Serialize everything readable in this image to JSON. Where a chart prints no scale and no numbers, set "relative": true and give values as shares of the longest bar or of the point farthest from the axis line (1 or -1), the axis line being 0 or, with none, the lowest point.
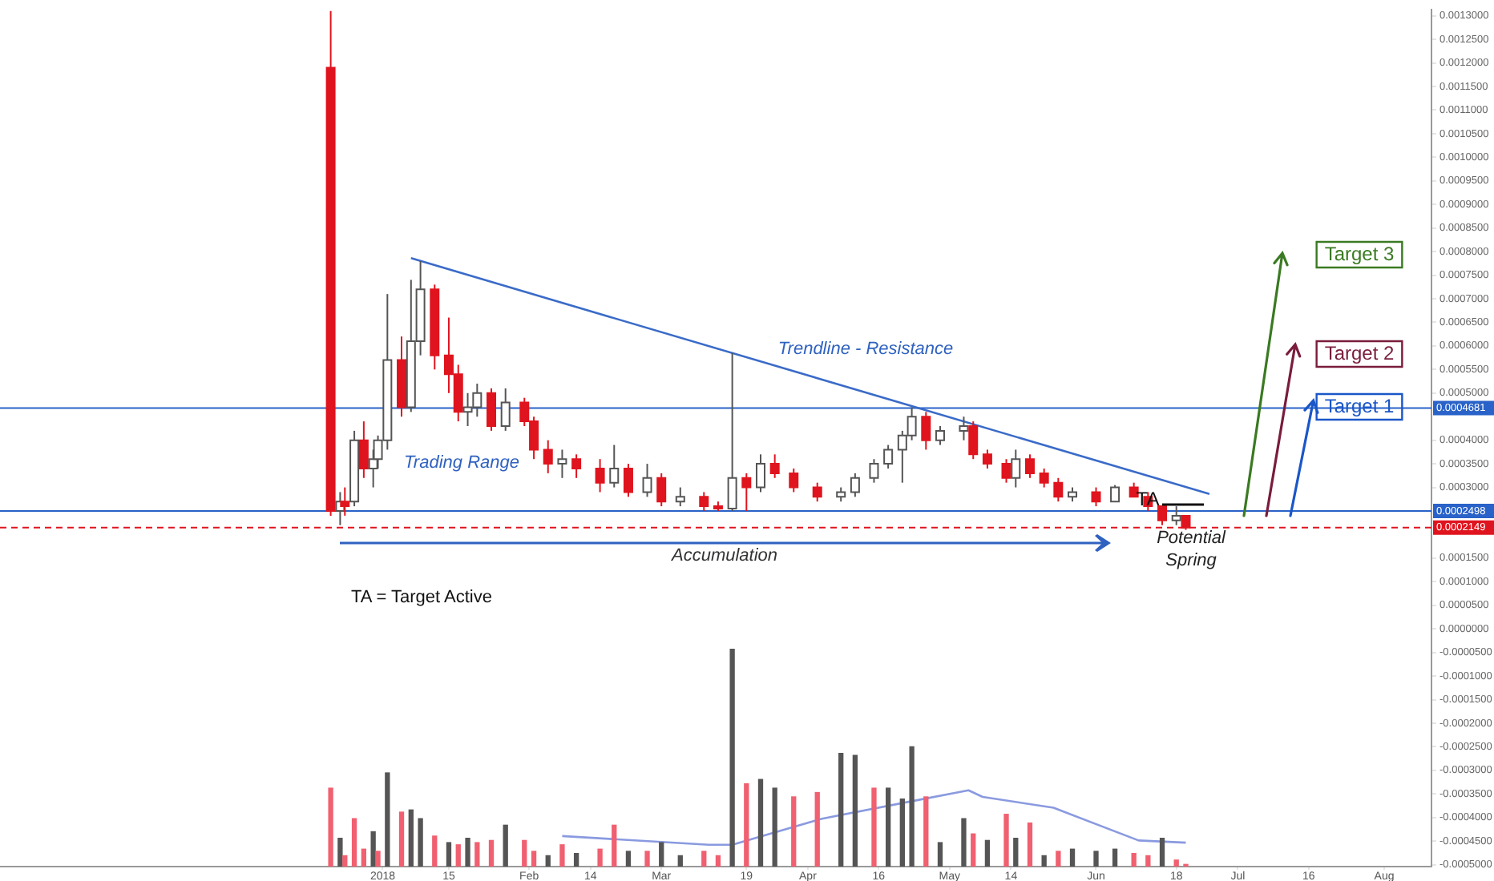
{
  "chart_data": [
    {
      "type": "candlestick",
      "x": [
        "2017-12-21",
        "2017-12-23",
        "2017-12-24",
        "2017-12-26",
        "2017-12-28",
        "2017-12-30",
        "2017-12-31",
        "2018-01-02",
        "2018-01-05",
        "2018-01-07",
        "2018-01-09",
        "2018-01-12",
        "2018-01-15",
        "2018-01-17",
        "2018-01-19",
        "2018-01-21",
        "2018-01-24",
        "2018-01-27",
        "2018-01-31",
        "2018-02-02",
        "2018-02-05",
        "2018-02-08",
        "2018-02-11",
        "2018-02-16",
        "2018-02-19",
        "2018-02-22",
        "2018-02-26",
        "2018-03-01",
        "2018-03-05",
        "2018-03-10",
        "2018-03-13",
        "2018-03-16",
        "2018-03-19",
        "2018-03-22",
        "2018-03-25",
        "2018-03-29",
        "2018-04-03",
        "2018-04-08",
        "2018-04-11",
        "2018-04-15",
        "2018-04-18",
        "2018-04-21",
        "2018-04-23",
        "2018-04-26",
        "2018-04-29",
        "2018-05-04",
        "2018-05-06",
        "2018-05-09",
        "2018-05-13",
        "2018-05-15",
        "2018-05-18",
        "2018-05-21",
        "2018-05-24",
        "2018-05-27",
        "2018-06-01",
        "2018-06-05",
        "2018-06-09",
        "2018-06-12",
        "2018-06-15",
        "2018-06-18",
        "2018-06-20"
      ],
      "ohlc": [
        [
          0.00119,
          0.00131,
          0.00024,
          0.00025
        ],
        [
          0.00025,
          0.00029,
          0.00022,
          0.00027
        ],
        [
          0.00027,
          0.0003,
          0.00024,
          0.00026
        ],
        [
          0.00027,
          0.00042,
          0.00026,
          0.0004
        ],
        [
          0.0004,
          0.00044,
          0.00032,
          0.00034
        ],
        [
          0.00034,
          0.00038,
          0.0003,
          0.00036
        ],
        [
          0.00036,
          0.00041,
          0.00034,
          0.0004
        ],
        [
          0.0004,
          0.00071,
          0.00038,
          0.00057
        ],
        [
          0.00057,
          0.00062,
          0.00045,
          0.00047
        ],
        [
          0.00047,
          0.00074,
          0.00046,
          0.00061
        ],
        [
          0.00061,
          0.00078,
          0.00058,
          0.00072
        ],
        [
          0.00072,
          0.00073,
          0.00055,
          0.00058
        ],
        [
          0.00058,
          0.00066,
          0.0005,
          0.00054
        ],
        [
          0.00054,
          0.00056,
          0.00044,
          0.00046
        ],
        [
          0.00046,
          0.0005,
          0.00043,
          0.00047
        ],
        [
          0.00047,
          0.00052,
          0.00045,
          0.0005
        ],
        [
          0.0005,
          0.00051,
          0.00042,
          0.00043
        ],
        [
          0.00043,
          0.00051,
          0.00042,
          0.00048
        ],
        [
          0.00048,
          0.00049,
          0.00043,
          0.00044
        ],
        [
          0.00044,
          0.00045,
          0.00036,
          0.00038
        ],
        [
          0.00038,
          0.0004,
          0.00033,
          0.00035
        ],
        [
          0.00035,
          0.00038,
          0.00032,
          0.00036
        ],
        [
          0.00036,
          0.00037,
          0.00032,
          0.00034
        ],
        [
          0.00034,
          0.00036,
          0.00029,
          0.00031
        ],
        [
          0.00031,
          0.00039,
          0.0003,
          0.00034
        ],
        [
          0.00034,
          0.00035,
          0.00028,
          0.00029
        ],
        [
          0.00029,
          0.00035,
          0.00028,
          0.00032
        ],
        [
          0.00032,
          0.00033,
          0.00026,
          0.00027
        ],
        [
          0.00027,
          0.0003,
          0.00026,
          0.00028
        ],
        [
          0.00028,
          0.00029,
          0.00025,
          0.00026
        ],
        [
          0.00026,
          0.00027,
          0.00025,
          0.000255
        ],
        [
          0.000255,
          0.000585,
          0.00025,
          0.00032
        ],
        [
          0.00032,
          0.00033,
          0.00025,
          0.0003
        ],
        [
          0.0003,
          0.00037,
          0.00029,
          0.00035
        ],
        [
          0.00035,
          0.00037,
          0.00032,
          0.00033
        ],
        [
          0.00033,
          0.00034,
          0.00029,
          0.0003
        ],
        [
          0.0003,
          0.00031,
          0.00027,
          0.00028
        ],
        [
          0.00028,
          0.0003,
          0.00027,
          0.00029
        ],
        [
          0.00029,
          0.00033,
          0.00028,
          0.00032
        ],
        [
          0.00032,
          0.00036,
          0.00031,
          0.00035
        ],
        [
          0.00035,
          0.00039,
          0.00034,
          0.00038
        ],
        [
          0.00038,
          0.00042,
          0.00031,
          0.00041
        ],
        [
          0.00041,
          0.00047,
          0.0004,
          0.00045
        ],
        [
          0.00045,
          0.00046,
          0.00038,
          0.0004
        ],
        [
          0.0004,
          0.00043,
          0.00039,
          0.00042
        ],
        [
          0.00042,
          0.00045,
          0.0004,
          0.00043
        ],
        [
          0.00043,
          0.00044,
          0.00036,
          0.00037
        ],
        [
          0.00037,
          0.00038,
          0.00034,
          0.00035
        ],
        [
          0.00035,
          0.00036,
          0.00031,
          0.00032
        ],
        [
          0.00032,
          0.00038,
          0.0003,
          0.00036
        ],
        [
          0.00036,
          0.00037,
          0.00032,
          0.00033
        ],
        [
          0.00033,
          0.00034,
          0.0003,
          0.00031
        ],
        [
          0.00031,
          0.00032,
          0.00027,
          0.00028
        ],
        [
          0.00028,
          0.0003,
          0.00027,
          0.00029
        ],
        [
          0.00029,
          0.0003,
          0.00026,
          0.00027
        ],
        [
          0.00027,
          0.000305,
          0.00027,
          0.0003
        ],
        [
          0.0003,
          0.00031,
          0.00028,
          0.00028
        ],
        [
          0.00028,
          0.00029,
          0.00025,
          0.00026
        ],
        [
          0.00026,
          0.00026,
          0.00022,
          0.00023
        ],
        [
          0.00023,
          0.00026,
          0.00022,
          0.00024
        ],
        [
          0.00024,
          0.00024,
          0.00021,
          0.0002149
        ]
      ],
      "series": [
        {
          "type": "line",
          "x": [
            "2018-01-07",
            "2018-06-25"
          ],
          "values": [
            0.000786,
            0.000286
          ],
          "color": "#3a6bc8"
        }
      ],
      "xlim": [
        "2017-10-12",
        "2018-08-11"
      ],
      "tick_labels": "y",
      "ylim": [
        -0.000504,
        0.0013134
      ],
      "yticks": [
        {
          "value": 0.0013,
          "label": "0.0013000"
        },
        {
          "value": 0.00125,
          "label": "0.0012500"
        },
        {
          "value": 0.0012,
          "label": "0.0012000"
        },
        {
          "value": 0.00115,
          "label": "0.0011500"
        },
        {
          "value": 0.0011,
          "label": "0.0011000"
        },
        {
          "value": 0.00105,
          "label": "0.0010500"
        },
        {
          "value": 0.001,
          "label": "0.0010000"
        },
        {
          "value": 0.00095,
          "label": "0.0009500"
        },
        {
          "value": 0.0009,
          "label": "0.0009000"
        },
        {
          "value": 0.00085,
          "label": "0.0008500"
        },
        {
          "value": 0.0008,
          "label": "0.0008000"
        },
        {
          "value": 0.00075,
          "label": "0.0007500"
        },
        {
          "value": 0.0007,
          "label": "0.0007000"
        },
        {
          "value": 0.00065,
          "label": "0.0006500"
        },
        {
          "value": 0.0006,
          "label": "0.0006000"
        },
        {
          "value": 0.00055,
          "label": "0.0005500"
        },
        {
          "value": 0.0005,
          "label": "0.0005000"
        },
        {
          "value": 0.0004,
          "label": "0.0004000"
        },
        {
          "value": 0.00035,
          "label": "0.0003500"
        },
        {
          "value": 0.0003,
          "label": "0.0003000"
        },
        {
          "value": 0.00015,
          "label": "0.0001500"
        },
        {
          "value": 0.0001,
          "label": "0.0001000"
        },
        {
          "value": 5e-05,
          "label": "0.0000500"
        },
        {
          "value": 0,
          "label": "0.0000000"
        },
        {
          "value": -5e-05,
          "label": "-0.0000500"
        },
        {
          "value": -0.0001,
          "label": "-0.0001000"
        },
        {
          "value": -0.00015,
          "label": "-0.0001500"
        },
        {
          "value": -0.0002,
          "label": "-0.0002000"
        },
        {
          "value": -0.00025,
          "label": "-0.0002500"
        },
        {
          "value": -0.0003,
          "label": "-0.0003000"
        },
        {
          "value": -0.00035,
          "label": "-0.0003500"
        },
        {
          "value": -0.0004,
          "label": "-0.0004000"
        },
        {
          "value": -0.00045,
          "label": "-0.0004500"
        },
        {
          "value": -0.0005,
          "label": "-0.0005000"
        }
      ],
      "ref_lines": [
        {
          "axis": "y",
          "value": 0.0004681,
          "label": "0.0004681",
          "color": "#2962c8"
        },
        {
          "axis": "y",
          "value": 0.0002498,
          "label": "0.0002498",
          "color": "#2962c8"
        },
        {
          "axis": "y",
          "value": 0.0002149,
          "label": "0.0002149",
          "color": "#e0141e",
          "line_style": "dashed"
        }
      ],
      "annotations": [
        "Trendline - Resistance",
        "Trading Range",
        "Accumulation",
        "Potential\nSpring",
        "TA",
        "TA = Target Active",
        {
          "text": "Target 1",
          "x": "2018-07-17",
          "y": 0.000484
        },
        "Target 2",
        "Target 3"
      ],
      "legend": false
    },
    {
      "type": "bar",
      "relative": true,
      "tick_labels": "x",
      "xticks": [
        {
          "value": "2018-01-01",
          "label": "2018"
        },
        {
          "value": "2018-01-15",
          "label": "15"
        },
        {
          "value": "2018-02-01",
          "label": "Feb"
        },
        {
          "value": "2018-02-14",
          "label": "14"
        },
        {
          "value": "2018-03-01",
          "label": "Mar"
        },
        {
          "value": "2018-03-19",
          "label": "19"
        },
        {
          "value": "2018-04-01",
          "label": "Apr"
        },
        {
          "value": "2018-04-16",
          "label": "16"
        },
        {
          "value": "2018-05-01",
          "label": "May"
        },
        {
          "value": "2018-05-14",
          "label": "14"
        },
        {
          "value": "2018-06-01",
          "label": "Jun"
        },
        {
          "value": "2018-06-18",
          "label": "18"
        },
        {
          "value": "2018-07-01",
          "label": "Jul"
        },
        {
          "value": "2018-07-16",
          "label": "16"
        },
        {
          "value": "2018-08-01",
          "label": "Aug"
        }
      ],
      "x": [
        "2017-12-21",
        "2017-12-23",
        "2017-12-24",
        "2017-12-26",
        "2017-12-28",
        "2017-12-30",
        "2017-12-31",
        "2018-01-02",
        "2018-01-05",
        "2018-01-07",
        "2018-01-09",
        "2018-01-12",
        "2018-01-15",
        "2018-01-17",
        "2018-01-19",
        "2018-01-21",
        "2018-01-24",
        "2018-01-27",
        "2018-01-31",
        "2018-02-02",
        "2018-02-05",
        "2018-02-08",
        "2018-02-11",
        "2018-02-16",
        "2018-02-19",
        "2018-02-22",
        "2018-02-26",
        "2018-03-01",
        "2018-03-05",
        "2018-03-10",
        "2018-03-13",
        "2018-03-16",
        "2018-03-19",
        "2018-03-22",
        "2018-03-25",
        "2018-03-29",
        "2018-04-03",
        "2018-04-08",
        "2018-04-11",
        "2018-04-15",
        "2018-04-18",
        "2018-04-21",
        "2018-04-23",
        "2018-04-26",
        "2018-04-29",
        "2018-05-04",
        "2018-05-06",
        "2018-05-09",
        "2018-05-13",
        "2018-05-15",
        "2018-05-18",
        "2018-05-21",
        "2018-05-24",
        "2018-05-27",
        "2018-06-01",
        "2018-06-05",
        "2018-06-09",
        "2018-06-12",
        "2018-06-15",
        "2018-06-18",
        "2018-06-20"
      ],
      "series": [
        {
          "type": "bar",
          "values": [
            0.36,
            0.13,
            0.05,
            0.22,
            0.08,
            0.16,
            0.07,
            0.43,
            0.25,
            0.26,
            0.22,
            0.14,
            0.11,
            0.1,
            0.13,
            0.11,
            0.12,
            0.19,
            0.12,
            0.07,
            0.05,
            0.1,
            0.06,
            0.08,
            0.19,
            0.07,
            0.07,
            0.11,
            0.05,
            0.07,
            0.05,
            1,
            0.38,
            0.4,
            0.36,
            0.32,
            0.34,
            0.52,
            0.51,
            0.36,
            0.36,
            0.31,
            0.55,
            0.32,
            0.11,
            0.22,
            0.15,
            0.12,
            0.24,
            0.13,
            0.2,
            0.05,
            0.07,
            0.08,
            0.07,
            0.08,
            0.06,
            0.05,
            0.13,
            0.03,
            0.01
          ],
          "colors": [
            "#f06070",
            "#555555",
            "#f06070",
            "#f06070",
            "#f06070",
            "#555555",
            "#f06070",
            "#555555",
            "#f06070",
            "#555555",
            "#555555",
            "#f06070",
            "#555555",
            "#f06070",
            "#555555",
            "#f06070",
            "#f06070",
            "#555555",
            "#f06070",
            "#f06070",
            "#555555",
            "#f06070",
            "#555555",
            "#f06070",
            "#f06070",
            "#555555",
            "#f06070",
            "#555555",
            "#555555",
            "#f06070",
            "#f06070",
            "#555555",
            "#f06070",
            "#555555",
            "#555555",
            "#f06070",
            "#f06070",
            "#555555",
            "#555555",
            "#f06070",
            "#555555",
            "#555555",
            "#555555",
            "#f06070",
            "#555555",
            "#555555",
            "#f06070",
            "#555555",
            "#f06070",
            "#555555",
            "#f06070",
            "#555555",
            "#f06070",
            "#555555",
            "#555555",
            "#555555",
            "#f06070",
            "#f06070",
            "#555555",
            "#f06070",
            "#f06070"
          ]
        },
        {
          "type": "line",
          "color": "#8a9ae0",
          "x": [
            "2018-02-08",
            "2018-03-11",
            "2018-03-16",
            "2018-04-04",
            "2018-04-23",
            "2018-05-05",
            "2018-05-08",
            "2018-05-23",
            "2018-06-10",
            "2018-06-20"
          ],
          "values": [
            0.14,
            0.1,
            0.1,
            0.22,
            0.3,
            0.35,
            0.32,
            0.27,
            0.12,
            0.11
          ]
        }
      ],
      "xlim": [
        "2017-10-12",
        "2018-08-11"
      ],
      "legend": false
    }
  ]
}
